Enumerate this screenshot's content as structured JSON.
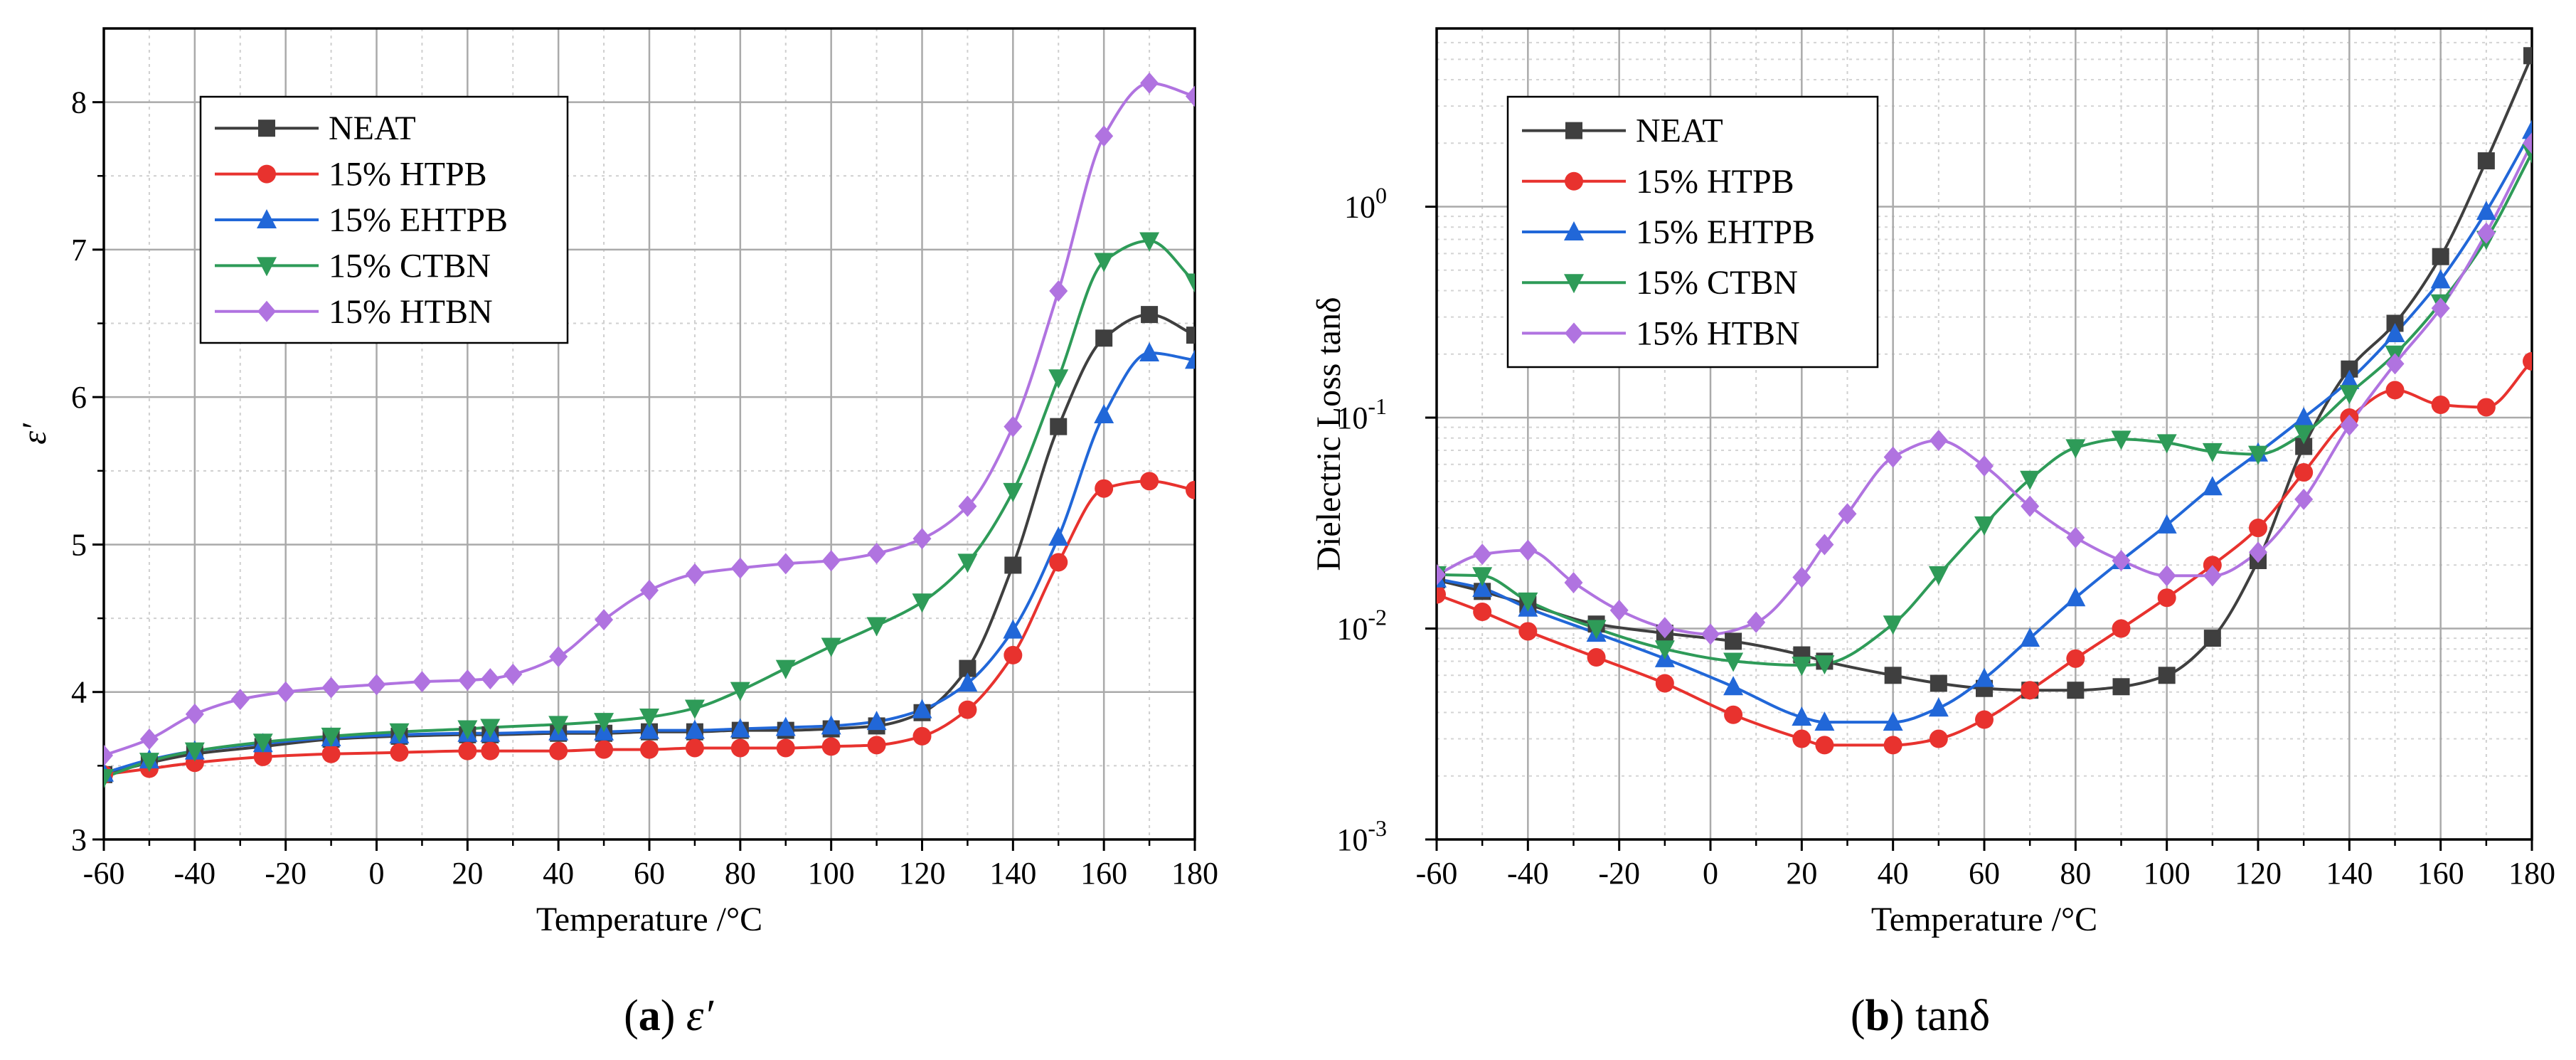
{
  "colors": {
    "NEAT": "#3f3f3f",
    "15% HTPB": "#e8322e",
    "15% EHTPB": "#2167d8",
    "15% CTBN": "#2e9b58",
    "15% HTBN": "#b073e0"
  },
  "chart_data": [
    {
      "type": "line",
      "id": "a",
      "caption_letter": "a",
      "caption_text": "ε′",
      "xlabel": "Temperature /°C",
      "ylabel": "ε′",
      "xlim": [
        -60,
        180
      ],
      "ylim": [
        3,
        8.5
      ],
      "yscale": "linear",
      "x_ticks": [
        "-60",
        "-40",
        "-20",
        "0",
        "20",
        "40",
        "60",
        "80",
        "100",
        "120",
        "140",
        "160",
        "180"
      ],
      "y_ticks": [
        "3",
        "4",
        "5",
        "6",
        "7",
        "8"
      ],
      "legend_position": "top-left",
      "series": [
        {
          "name": "NEAT",
          "marker": "square",
          "x": [
            -60,
            -50,
            -40,
            -25,
            -10,
            5,
            20,
            25,
            40,
            50,
            60,
            70,
            80,
            90,
            100,
            110,
            120,
            130,
            140,
            150,
            160,
            170,
            180
          ],
          "y": [
            3.44,
            3.52,
            3.58,
            3.63,
            3.68,
            3.7,
            3.71,
            3.71,
            3.72,
            3.72,
            3.73,
            3.73,
            3.74,
            3.74,
            3.75,
            3.77,
            3.86,
            4.16,
            4.86,
            5.8,
            6.4,
            6.56,
            6.42
          ]
        },
        {
          "name": "15% HTPB",
          "marker": "circle",
          "x": [
            -60,
            -50,
            -40,
            -25,
            -10,
            5,
            20,
            25,
            40,
            50,
            60,
            70,
            80,
            90,
            100,
            110,
            120,
            130,
            140,
            150,
            160,
            170,
            180
          ],
          "y": [
            3.44,
            3.48,
            3.52,
            3.56,
            3.58,
            3.59,
            3.6,
            3.6,
            3.6,
            3.61,
            3.61,
            3.62,
            3.62,
            3.62,
            3.63,
            3.64,
            3.7,
            3.88,
            4.25,
            4.88,
            5.38,
            5.43,
            5.37
          ]
        },
        {
          "name": "15% EHTPB",
          "marker": "triangle-up",
          "x": [
            -60,
            -50,
            -40,
            -25,
            -10,
            5,
            20,
            25,
            40,
            50,
            60,
            70,
            80,
            90,
            100,
            110,
            120,
            130,
            140,
            150,
            160,
            170,
            180
          ],
          "y": [
            3.45,
            3.54,
            3.6,
            3.65,
            3.69,
            3.71,
            3.72,
            3.72,
            3.73,
            3.73,
            3.74,
            3.74,
            3.75,
            3.76,
            3.77,
            3.8,
            3.88,
            4.06,
            4.42,
            5.05,
            5.88,
            6.3,
            6.25
          ]
        },
        {
          "name": "15% CTBN",
          "marker": "triangle-down",
          "x": [
            -60,
            -50,
            -40,
            -25,
            -10,
            5,
            20,
            25,
            40,
            50,
            60,
            70,
            80,
            90,
            100,
            110,
            120,
            130,
            140,
            150,
            160,
            170,
            180
          ],
          "y": [
            3.42,
            3.53,
            3.6,
            3.66,
            3.7,
            3.73,
            3.75,
            3.76,
            3.78,
            3.8,
            3.83,
            3.89,
            4.01,
            4.16,
            4.31,
            4.45,
            4.61,
            4.88,
            5.36,
            6.13,
            6.92,
            7.06,
            6.78
          ]
        },
        {
          "name": "15% HTBN",
          "marker": "diamond",
          "x": [
            -60,
            -50,
            -40,
            -30,
            -20,
            -10,
            0,
            10,
            20,
            25,
            30,
            40,
            50,
            60,
            70,
            80,
            90,
            100,
            110,
            120,
            130,
            140,
            150,
            160,
            170,
            180
          ],
          "y": [
            3.57,
            3.68,
            3.85,
            3.95,
            4.0,
            4.03,
            4.05,
            4.07,
            4.08,
            4.09,
            4.12,
            4.24,
            4.49,
            4.69,
            4.8,
            4.84,
            4.87,
            4.89,
            4.94,
            5.04,
            5.26,
            5.8,
            6.72,
            7.77,
            8.13,
            8.04
          ]
        }
      ]
    },
    {
      "type": "line",
      "id": "b",
      "caption_letter": "b",
      "caption_text": "tanδ",
      "xlabel": "Temperature /°C",
      "ylabel": "Dielectric Loss tanδ",
      "xlim": [
        -60,
        180
      ],
      "ylim": [
        0.001,
        7
      ],
      "yscale": "log",
      "x_ticks": [
        "-60",
        "-40",
        "-20",
        "0",
        "20",
        "40",
        "60",
        "80",
        "100",
        "120",
        "140",
        "160",
        "180"
      ],
      "y_ticks": [
        "10^-3",
        "10^-2",
        "10^-1",
        "10^0"
      ],
      "legend_position": "top-left",
      "series": [
        {
          "name": "NEAT",
          "marker": "square",
          "x": [
            -60,
            -50,
            -40,
            -25,
            -10,
            5,
            20,
            25,
            40,
            50,
            60,
            70,
            80,
            90,
            100,
            110,
            120,
            130,
            140,
            150,
            160,
            170,
            180
          ],
          "y": [
            0.017,
            0.015,
            0.013,
            0.0105,
            0.0095,
            0.0087,
            0.0075,
            0.007,
            0.006,
            0.0055,
            0.0052,
            0.0051,
            0.0051,
            0.0053,
            0.006,
            0.009,
            0.021,
            0.073,
            0.17,
            0.28,
            0.58,
            1.65,
            5.2
          ]
        },
        {
          "name": "15% HTPB",
          "marker": "circle",
          "x": [
            -60,
            -50,
            -40,
            -25,
            -10,
            5,
            20,
            25,
            40,
            50,
            60,
            70,
            80,
            90,
            100,
            110,
            120,
            130,
            140,
            150,
            160,
            170,
            180
          ],
          "y": [
            0.0145,
            0.012,
            0.0097,
            0.0073,
            0.0055,
            0.0039,
            0.003,
            0.0028,
            0.0028,
            0.003,
            0.0037,
            0.0051,
            0.0072,
            0.01,
            0.014,
            0.02,
            0.03,
            0.055,
            0.1,
            0.135,
            0.115,
            0.112,
            0.185
          ]
        },
        {
          "name": "15% EHTPB",
          "marker": "triangle-up",
          "x": [
            -60,
            -50,
            -40,
            -25,
            -10,
            5,
            20,
            25,
            40,
            50,
            60,
            70,
            80,
            90,
            100,
            110,
            120,
            130,
            140,
            150,
            160,
            170,
            180
          ],
          "y": [
            0.0172,
            0.0155,
            0.0125,
            0.0095,
            0.0072,
            0.0053,
            0.0038,
            0.0036,
            0.0036,
            0.0042,
            0.0058,
            0.009,
            0.014,
            0.021,
            0.031,
            0.047,
            0.068,
            0.1,
            0.15,
            0.25,
            0.45,
            0.95,
            2.3
          ]
        },
        {
          "name": "15% CTBN",
          "marker": "triangle-down",
          "x": [
            -60,
            -50,
            -40,
            -25,
            -10,
            5,
            20,
            25,
            40,
            50,
            60,
            70,
            80,
            90,
            100,
            110,
            120,
            130,
            140,
            150,
            160,
            170,
            180
          ],
          "y": [
            0.018,
            0.0178,
            0.0135,
            0.01,
            0.008,
            0.007,
            0.0067,
            0.0068,
            0.0105,
            0.018,
            0.031,
            0.051,
            0.072,
            0.079,
            0.076,
            0.069,
            0.067,
            0.084,
            0.13,
            0.2,
            0.35,
            0.7,
            1.8
          ]
        },
        {
          "name": "15% HTBN",
          "marker": "diamond",
          "x": [
            -60,
            -50,
            -40,
            -30,
            -20,
            -10,
            0,
            10,
            20,
            25,
            30,
            40,
            50,
            60,
            70,
            80,
            90,
            100,
            110,
            120,
            130,
            140,
            150,
            160,
            170,
            180
          ],
          "y": [
            0.018,
            0.0225,
            0.0235,
            0.0165,
            0.0122,
            0.0101,
            0.0094,
            0.0107,
            0.0175,
            0.025,
            0.035,
            0.065,
            0.078,
            0.059,
            0.038,
            0.027,
            0.021,
            0.0178,
            0.0178,
            0.023,
            0.041,
            0.092,
            0.18,
            0.33,
            0.75,
            2.0
          ]
        }
      ]
    }
  ]
}
